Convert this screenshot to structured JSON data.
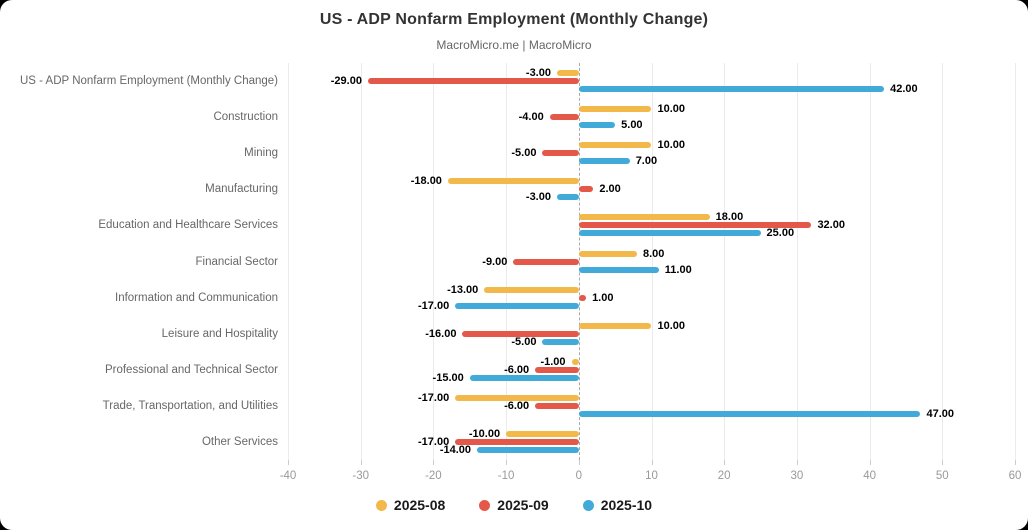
{
  "header": {
    "title": "US - ADP Nonfarm Employment (Monthly Change)",
    "subtitle": "MacroMicro.me | MacroMicro"
  },
  "chart_data": {
    "type": "bar",
    "orientation": "horizontal",
    "title": "US - ADP Nonfarm Employment (Monthly Change)",
    "subtitle": "MacroMicro.me | MacroMicro",
    "categories": [
      "US - ADP Nonfarm Employment (Monthly Change)",
      "Construction",
      "Mining",
      "Manufacturing",
      "Education and Healthcare Services",
      "Financial Sector",
      "Information and Communication",
      "Leisure and Hospitality",
      "Professional and Technical Sector",
      "Trade, Transportation, and Utilities",
      "Other Services"
    ],
    "series": [
      {
        "name": "2025-08",
        "color": "#F2B94A",
        "values": [
          -3,
          10,
          10,
          -18,
          18,
          8,
          -13,
          10,
          -1,
          -17,
          -10
        ]
      },
      {
        "name": "2025-09",
        "color": "#E4584A",
        "values": [
          -29,
          -4,
          -5,
          2,
          32,
          -9,
          1,
          -16,
          -6,
          -6,
          -17
        ]
      },
      {
        "name": "2025-10",
        "color": "#41AAD9",
        "values": [
          42,
          5,
          7,
          -3,
          25,
          11,
          -17,
          -5,
          -15,
          47,
          -14
        ]
      }
    ],
    "xlim": [
      -40,
      60
    ],
    "xticks": [
      -40,
      -30,
      -20,
      -10,
      0,
      10,
      20,
      30,
      40,
      50,
      60
    ],
    "value_label_decimals": 2,
    "grid": true,
    "zero_line_style": "dashed",
    "legend_position": "bottom",
    "colors": {
      "grid": "#ebebeb",
      "zero_line": "#aaaaaa",
      "value_label": "#000000",
      "category_label": "#676767",
      "tick_label": "#999999"
    }
  }
}
